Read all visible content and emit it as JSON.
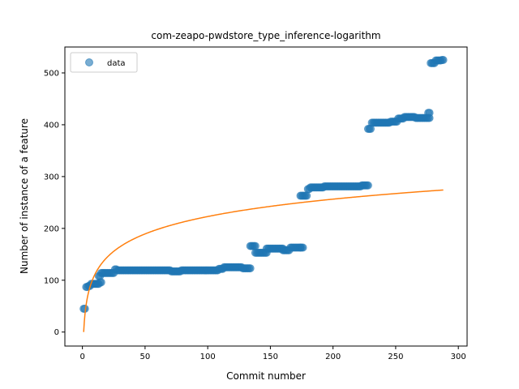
{
  "chart_data": {
    "type": "scatter",
    "title": "com-zeapo-pwdstore_type_inference-logarithm",
    "xlabel": "Commit number",
    "ylabel": "Number of instance of a feature",
    "xlim": [
      -14,
      307
    ],
    "ylim": [
      -27,
      550
    ],
    "xticks": [
      0,
      50,
      100,
      150,
      200,
      250,
      300
    ],
    "yticks": [
      0,
      100,
      200,
      300,
      400,
      500
    ],
    "grid": false,
    "legend": {
      "placement": "top-left",
      "entries": [
        "data"
      ]
    },
    "colors": {
      "points": "#1f77b4",
      "fit": "#ff7f0e"
    },
    "series": [
      {
        "name": "data",
        "kind": "scatter",
        "segments": [
          {
            "x_start": 1,
            "x_end": 2,
            "y": 45
          },
          {
            "x_start": 3,
            "x_end": 4,
            "y": 87
          },
          {
            "x_start": 5,
            "x_end": 6,
            "y": 89
          },
          {
            "x_start": 7,
            "x_end": 13,
            "y": 93
          },
          {
            "x_start": 14,
            "x_end": 15,
            "y": 96
          },
          {
            "x_start": 13,
            "x_end": 14,
            "y": 108
          },
          {
            "x_start": 15,
            "x_end": 25,
            "y": 114
          },
          {
            "x_start": 26,
            "x_end": 27,
            "y": 121
          },
          {
            "x_start": 28,
            "x_end": 70,
            "y": 119
          },
          {
            "x_start": 71,
            "x_end": 78,
            "y": 117
          },
          {
            "x_start": 79,
            "x_end": 108,
            "y": 119
          },
          {
            "x_start": 109,
            "x_end": 112,
            "y": 122
          },
          {
            "x_start": 113,
            "x_end": 127,
            "y": 125
          },
          {
            "x_start": 128,
            "x_end": 134,
            "y": 123
          },
          {
            "x_start": 134,
            "x_end": 138,
            "y": 166
          },
          {
            "x_start": 138,
            "x_end": 147,
            "y": 153
          },
          {
            "x_start": 147,
            "x_end": 160,
            "y": 161
          },
          {
            "x_start": 160,
            "x_end": 165,
            "y": 158
          },
          {
            "x_start": 166,
            "x_end": 174,
            "y": 163
          },
          {
            "x_start": 174,
            "x_end": 176,
            "y": 163
          },
          {
            "x_start": 174,
            "x_end": 179,
            "y": 263
          },
          {
            "x_start": 180,
            "x_end": 181,
            "y": 276
          },
          {
            "x_start": 182,
            "x_end": 192,
            "y": 279
          },
          {
            "x_start": 193,
            "x_end": 222,
            "y": 281
          },
          {
            "x_start": 223,
            "x_end": 228,
            "y": 283
          },
          {
            "x_start": 228,
            "x_end": 230,
            "y": 392
          },
          {
            "x_start": 231,
            "x_end": 245,
            "y": 404
          },
          {
            "x_start": 246,
            "x_end": 251,
            "y": 406
          },
          {
            "x_start": 252,
            "x_end": 256,
            "y": 412
          },
          {
            "x_start": 257,
            "x_end": 265,
            "y": 415
          },
          {
            "x_start": 266,
            "x_end": 277,
            "y": 413
          },
          {
            "x_start": 276,
            "x_end": 277,
            "y": 423
          },
          {
            "x_start": 278,
            "x_end": 281,
            "y": 519
          },
          {
            "x_start": 282,
            "x_end": 286,
            "y": 524
          },
          {
            "x_start": 287,
            "x_end": 288,
            "y": 525
          }
        ]
      },
      {
        "kind": "line",
        "function": "logarithm",
        "a": 48.4,
        "x_range": [
          1,
          288
        ]
      }
    ]
  }
}
